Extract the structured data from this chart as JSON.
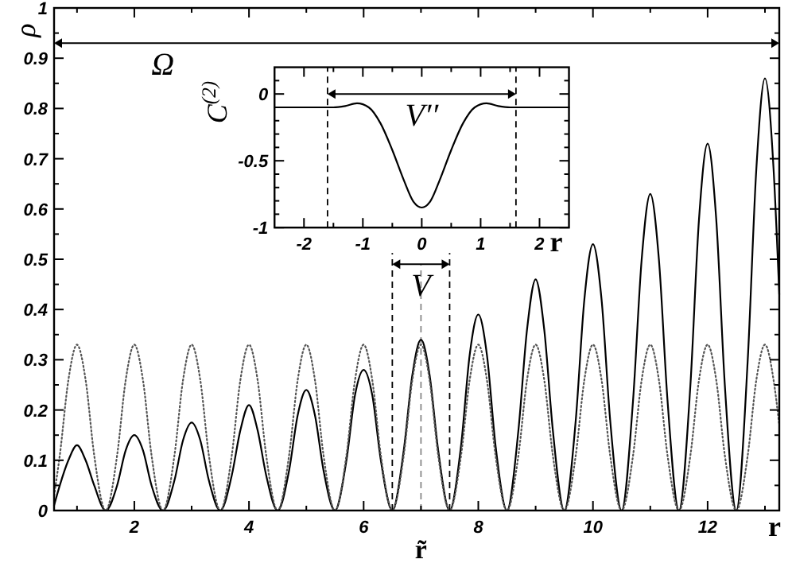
{
  "chart_data": [
    {
      "type": "line",
      "xlabel": "r",
      "ylabel": "ρ",
      "x": [
        0.6,
        0.7,
        0.85,
        1,
        1.15,
        1.3,
        1.5,
        1.7,
        1.85,
        2,
        2.15,
        2.3,
        2.5,
        2.7,
        2.85,
        3,
        3.15,
        3.3,
        3.5,
        3.7,
        3.85,
        4,
        4.15,
        4.3,
        4.5,
        4.7,
        4.85,
        5,
        5.15,
        5.3,
        5.5,
        5.7,
        5.85,
        6,
        6.15,
        6.3,
        6.5,
        6.7,
        6.85,
        7,
        7.15,
        7.3,
        7.5,
        7.7,
        7.85,
        8,
        8.15,
        8.3,
        8.5,
        8.7,
        8.85,
        9,
        9.15,
        9.3,
        9.5,
        9.7,
        9.85,
        10,
        10.15,
        10.3,
        10.5,
        10.7,
        10.85,
        11,
        11.15,
        11.3,
        11.5,
        11.7,
        11.85,
        12,
        12.15,
        12.3,
        12.5,
        12.7,
        12.85,
        13,
        13.15,
        13.25
      ],
      "series": [
        {
          "color": "#000000",
          "line_style": "solid",
          "values": [
            0.01,
            0.05,
            0.1,
            0.13,
            0.1,
            0.05,
            0,
            0.05,
            0.12,
            0.15,
            0.12,
            0.05,
            0,
            0.06,
            0.14,
            0.175,
            0.14,
            0.06,
            0,
            0.07,
            0.16,
            0.21,
            0.16,
            0.07,
            0,
            0.08,
            0.19,
            0.24,
            0.19,
            0.08,
            0,
            0.1,
            0.23,
            0.28,
            0.23,
            0.1,
            0,
            0.12,
            0.27,
            0.34,
            0.27,
            0.12,
            0,
            0.13,
            0.31,
            0.39,
            0.31,
            0.13,
            0,
            0.16,
            0.36,
            0.46,
            0.36,
            0.16,
            0,
            0.18,
            0.42,
            0.53,
            0.42,
            0.18,
            0,
            0.22,
            0.5,
            0.63,
            0.5,
            0.22,
            0,
            0.25,
            0.58,
            0.73,
            0.58,
            0.25,
            0,
            0.3,
            0.68,
            0.86,
            0.68,
            0.43
          ]
        },
        {
          "color": "#555555",
          "line_style": "dotted",
          "values": [
            0.03,
            0.11,
            0.26,
            0.33,
            0.26,
            0.11,
            0,
            0.11,
            0.26,
            0.33,
            0.26,
            0.11,
            0,
            0.11,
            0.26,
            0.33,
            0.26,
            0.11,
            0,
            0.11,
            0.26,
            0.33,
            0.26,
            0.11,
            0,
            0.11,
            0.26,
            0.33,
            0.26,
            0.11,
            0,
            0.11,
            0.26,
            0.33,
            0.26,
            0.11,
            0,
            0.11,
            0.26,
            0.33,
            0.26,
            0.11,
            0,
            0.11,
            0.26,
            0.33,
            0.26,
            0.11,
            0,
            0.11,
            0.26,
            0.33,
            0.26,
            0.11,
            0,
            0.11,
            0.26,
            0.33,
            0.26,
            0.11,
            0,
            0.11,
            0.26,
            0.33,
            0.26,
            0.11,
            0,
            0.11,
            0.26,
            0.33,
            0.26,
            0.11,
            0,
            0.11,
            0.26,
            0.33,
            0.26,
            0.17
          ]
        }
      ],
      "xlim": [
        0.6,
        13.25
      ],
      "xticks": [
        {
          "value": 1,
          "label": null
        },
        2,
        {
          "value": 3,
          "label": null
        },
        4,
        {
          "value": 5,
          "label": null
        },
        6,
        {
          "value": 7,
          "label": null
        },
        8,
        {
          "value": 9,
          "label": null
        },
        10,
        {
          "value": 11,
          "label": null
        },
        12,
        {
          "value": 13,
          "label": null
        }
      ],
      "ylim": [
        0,
        1
      ],
      "yticks": [
        0,
        {
          "value": 0.05,
          "label": null
        },
        0.1,
        {
          "value": 0.15,
          "label": null
        },
        0.2,
        {
          "value": 0.25,
          "label": null
        },
        0.3,
        {
          "value": 0.35,
          "label": null
        },
        0.4,
        {
          "value": 0.45,
          "label": null
        },
        0.5,
        {
          "value": 0.55,
          "label": null
        },
        0.6,
        {
          "value": 0.65,
          "label": null
        },
        0.7,
        {
          "value": 0.75,
          "label": null
        },
        0.8,
        {
          "value": 0.85,
          "label": null
        },
        0.9,
        {
          "value": 0.95,
          "label": null
        },
        1
      ],
      "grid": false,
      "ref_lines": [
        {
          "axis": "x",
          "value": 6.5,
          "line_style": "dashed"
        },
        {
          "axis": "x",
          "value": 7.5,
          "line_style": "dashed"
        },
        {
          "axis": "x",
          "value": 7,
          "label": "r̃",
          "color": "#888888",
          "line_style": "dashed"
        }
      ],
      "annotations": [
        "Ω",
        "V"
      ]
    },
    {
      "type": "line",
      "xlabel": "r",
      "ylabel": "C$^{(2)}$",
      "series": [
        {
          "color": "#000000",
          "line_style": "solid",
          "x": [
            -2.5,
            -1.5,
            -1.3,
            -1.1,
            -0.9,
            -0.7,
            -0.5,
            -0.3,
            -0.15,
            0,
            0.15,
            0.3,
            0.5,
            0.7,
            0.9,
            1.1,
            1.3,
            1.5,
            2.5
          ],
          "values": [
            -0.1,
            -0.1,
            -0.09,
            -0.07,
            -0.1,
            -0.22,
            -0.42,
            -0.65,
            -0.8,
            -0.85,
            -0.8,
            -0.65,
            -0.42,
            -0.22,
            -0.1,
            -0.07,
            -0.09,
            -0.1,
            -0.1
          ]
        }
      ],
      "xlim": [
        -2.5,
        2.5
      ],
      "xticks": [
        -2,
        {
          "value": -1.5,
          "label": null
        },
        -1,
        {
          "value": -0.5,
          "label": null
        },
        0,
        {
          "value": 0.5,
          "label": null
        },
        1,
        {
          "value": 1.5,
          "label": null
        },
        2
      ],
      "ylim": [
        -1,
        0.2
      ],
      "yticks": [
        -1,
        {
          "value": -0.9,
          "label": null
        },
        {
          "value": -0.8,
          "label": null
        },
        {
          "value": -0.7,
          "label": null
        },
        {
          "value": -0.6,
          "label": null
        },
        -0.5,
        {
          "value": -0.4,
          "label": null
        },
        {
          "value": -0.3,
          "label": null
        },
        {
          "value": -0.2,
          "label": null
        },
        {
          "value": -0.1,
          "label": null
        },
        0,
        {
          "value": 0.1,
          "label": null
        }
      ],
      "grid": false,
      "ref_lines": [
        {
          "axis": "x",
          "value": -1.6,
          "line_style": "dashed"
        },
        {
          "axis": "x",
          "value": 1.6,
          "line_style": "dashed"
        }
      ],
      "annotations": [
        "V′′"
      ]
    }
  ]
}
